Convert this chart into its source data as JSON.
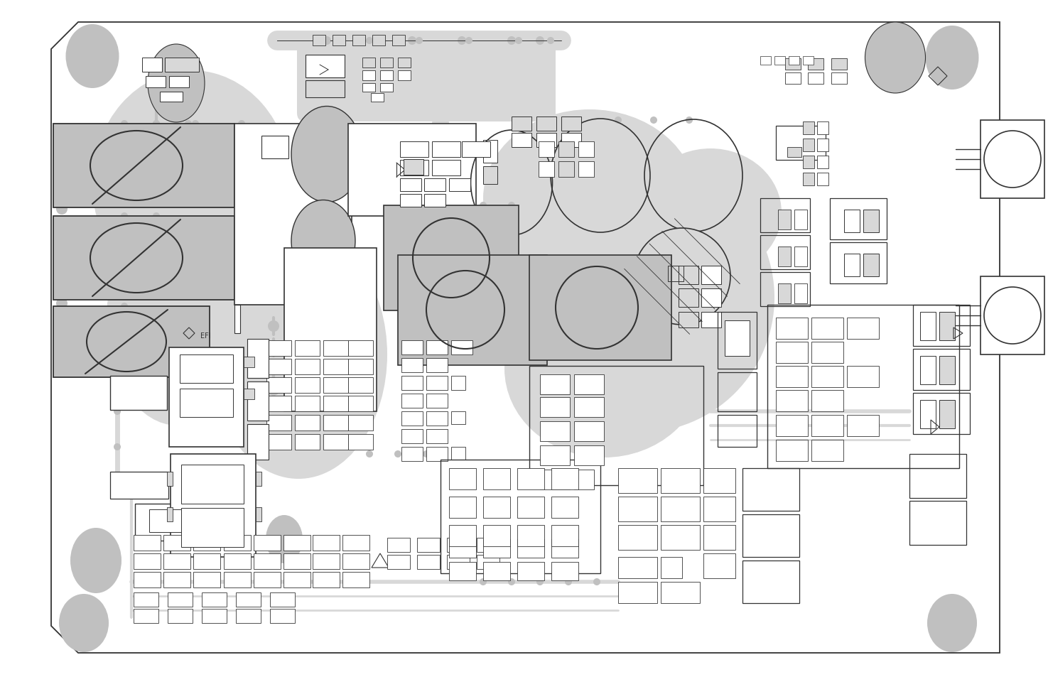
{
  "bg": "#ffffff",
  "lc": "#333333",
  "gf": "#c0c0c0",
  "lgf": "#d8d8d8",
  "lw_board": 1.2,
  "lw_main": 0.9,
  "lw_thin": 0.6
}
